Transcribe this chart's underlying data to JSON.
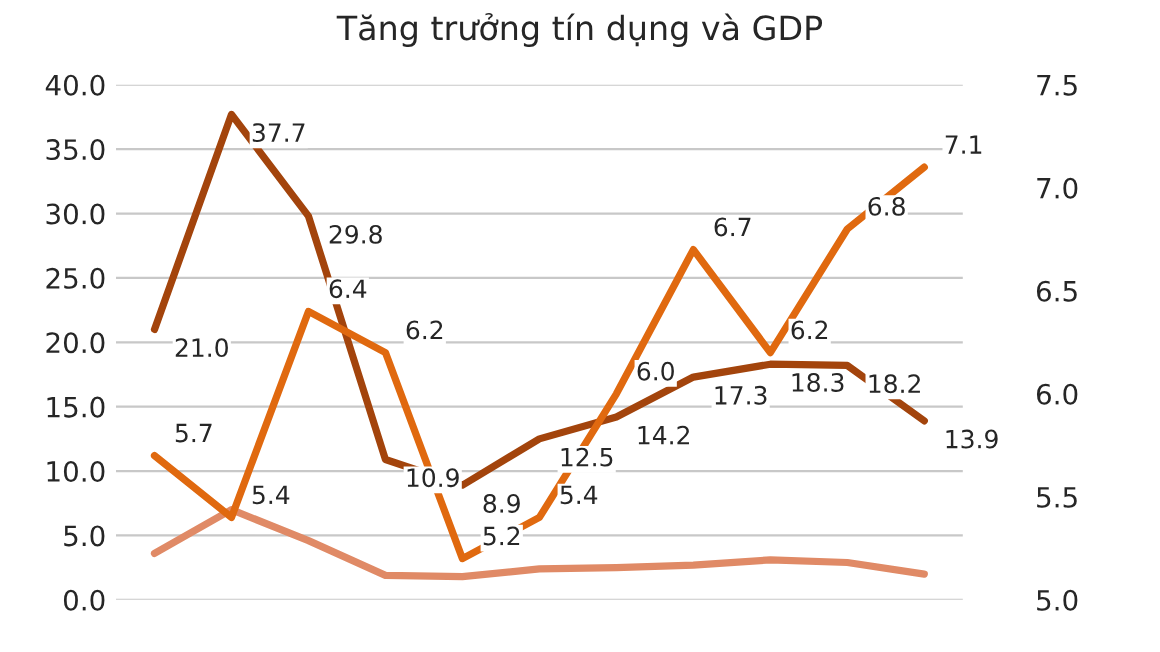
{
  "chart_data": {
    "type": "line",
    "title": "Tăng trưởng tín dụng và GDP",
    "categories": [
      null,
      null,
      null,
      null,
      null,
      null,
      null,
      null,
      null,
      null,
      null
    ],
    "series": [
      {
        "color": "#a3440c",
        "values": [
          21.0,
          37.7,
          29.8,
          10.9,
          8.9,
          12.5,
          14.2,
          17.3,
          18.3,
          18.2,
          13.9
        ],
        "value_labels": [
          "21.0",
          "37.7",
          "29.8",
          "10.9",
          "8.9",
          "12.5",
          "14.2",
          "17.3",
          "18.3",
          "18.2",
          "13.9"
        ]
      },
      {
        "color": "#e0690f",
        "axis": "y2",
        "values": [
          5.7,
          5.4,
          6.4,
          6.2,
          5.2,
          5.4,
          6.0,
          6.7,
          6.2,
          6.8,
          7.1
        ],
        "value_labels": [
          "5.7",
          "5.4",
          "6.4",
          "6.2",
          "5.2",
          "5.4",
          "6.0",
          "6.7",
          "6.2",
          "6.8",
          "7.1"
        ]
      },
      {
        "color": "#e08a66",
        "values": [
          3.6,
          7.0,
          4.6,
          1.9,
          1.8,
          2.4,
          2.5,
          2.7,
          3.1,
          2.9,
          2.0
        ]
      }
    ],
    "ylim": [
      0,
      40
    ],
    "yticks": [
      {
        "value": 0,
        "label": "0.0"
      },
      {
        "value": 5,
        "label": "5.0"
      },
      {
        "value": 10,
        "label": "10.0"
      },
      {
        "value": 15,
        "label": "15.0"
      },
      {
        "value": 20,
        "label": "20.0"
      },
      {
        "value": 25,
        "label": "25.0"
      },
      {
        "value": 30,
        "label": "30.0"
      },
      {
        "value": 35,
        "label": "35.0"
      },
      {
        "value": 40,
        "label": "40.0"
      }
    ],
    "y2lim": [
      5,
      7.5
    ],
    "y2ticks": [
      {
        "value": 5,
        "label": "5.0"
      },
      {
        "value": 5.5,
        "label": "5.5"
      },
      {
        "value": 6,
        "label": "6.0"
      },
      {
        "value": 6.5,
        "label": "6.5"
      },
      {
        "value": 7,
        "label": "7.0"
      },
      {
        "value": 7.5,
        "label": "7.5"
      }
    ],
    "grid": "y",
    "marker": "none",
    "line_style": "solid"
  }
}
